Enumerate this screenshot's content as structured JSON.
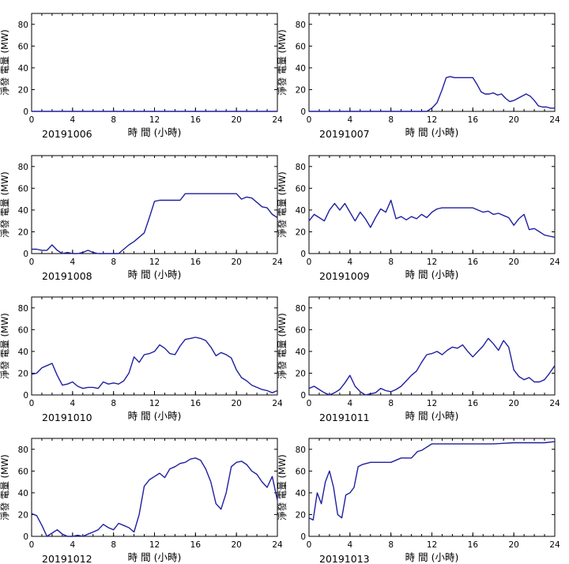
{
  "chart_data": [
    {
      "type": "line",
      "date_label": "20191006",
      "xlabel": "時 間 (小時)",
      "ylabel": "淨發 電量 (MW)",
      "xlim": [
        0,
        24
      ],
      "ylim": [
        0,
        90
      ],
      "xticks": [
        "0",
        "4",
        "8",
        "12",
        "16",
        "20",
        "24"
      ],
      "yticks": [
        "0",
        "20",
        "40",
        "60",
        "80"
      ],
      "line_color": "#1f1fa0",
      "x": [
        0,
        24
      ],
      "y": [
        0,
        0
      ]
    },
    {
      "type": "line",
      "date_label": "20191007",
      "xlabel": "時 間 (小時)",
      "ylabel": "淨發 電量 (MW)",
      "xlim": [
        0,
        24
      ],
      "ylim": [
        0,
        90
      ],
      "xticks": [
        "0",
        "4",
        "8",
        "12",
        "16",
        "20",
        "24"
      ],
      "yticks": [
        "0",
        "20",
        "40",
        "60",
        "80"
      ],
      "line_color": "#1f1fa0",
      "x": [
        0,
        11.5,
        12,
        12.5,
        13,
        13.4,
        13.8,
        14.2,
        14.6,
        15,
        15.5,
        16,
        16.4,
        16.8,
        17.2,
        17.6,
        18,
        18.4,
        18.8,
        19.2,
        19.6,
        20,
        20.4,
        20.8,
        21.2,
        21.6,
        22,
        22.4,
        22.8,
        23.2,
        23.6,
        24
      ],
      "y": [
        0,
        0,
        3,
        8,
        20,
        31,
        32,
        31,
        31,
        31,
        31,
        31,
        25,
        18,
        16,
        16,
        17,
        15,
        16,
        12,
        9,
        10,
        12,
        14,
        16,
        14,
        10,
        5,
        4,
        4,
        3,
        3
      ]
    },
    {
      "type": "line",
      "date_label": "20191008",
      "xlabel": "時 間 (小時)",
      "ylabel": "淨發 電量 (MW)",
      "xlim": [
        0,
        24
      ],
      "ylim": [
        0,
        90
      ],
      "xticks": [
        "0",
        "4",
        "8",
        "12",
        "16",
        "20",
        "24"
      ],
      "yticks": [
        "0",
        "20",
        "40",
        "60",
        "80"
      ],
      "line_color": "#1f1fa0",
      "x": [
        0,
        0.5,
        1,
        1.5,
        2,
        2.5,
        3,
        3.5,
        4,
        4.5,
        5,
        5.5,
        6,
        6.5,
        7,
        7.5,
        8,
        8.5,
        9,
        9.5,
        10,
        10.5,
        11,
        11.5,
        12,
        12.5,
        13,
        13.5,
        14,
        14.5,
        15,
        15.5,
        16,
        16.5,
        17,
        17.5,
        18,
        18.5,
        19,
        19.5,
        20,
        20.5,
        21,
        21.5,
        22,
        22.5,
        23,
        23.5,
        24
      ],
      "y": [
        4,
        4,
        3,
        3,
        8,
        3,
        0,
        1,
        0,
        0,
        1,
        3,
        1,
        0,
        0,
        0,
        0,
        0,
        4,
        8,
        11,
        15,
        19,
        33,
        48,
        49,
        49,
        49,
        49,
        49,
        55,
        55,
        55,
        55,
        55,
        55,
        55,
        55,
        55,
        55,
        55,
        50,
        52,
        51,
        47,
        43,
        42,
        36,
        33
      ]
    },
    {
      "type": "line",
      "date_label": "20191009",
      "xlabel": "時 間 (小時)",
      "ylabel": "淨發 電量 (MW)",
      "xlim": [
        0,
        24
      ],
      "ylim": [
        0,
        90
      ],
      "xticks": [
        "0",
        "4",
        "8",
        "12",
        "16",
        "20",
        "24"
      ],
      "yticks": [
        "0",
        "20",
        "40",
        "60",
        "80"
      ],
      "line_color": "#1f1fa0",
      "x": [
        0,
        0.5,
        1,
        1.5,
        2,
        2.5,
        3,
        3.5,
        4,
        4.5,
        5,
        5.5,
        6,
        6.5,
        7,
        7.5,
        8,
        8.5,
        9,
        9.5,
        10,
        10.5,
        11,
        11.5,
        12,
        12.5,
        13,
        13.5,
        14,
        14.5,
        15,
        15.5,
        16,
        16.5,
        17,
        17.5,
        18,
        18.5,
        19,
        19.5,
        20,
        20.5,
        21,
        21.5,
        22,
        22.5,
        23,
        23.5,
        24
      ],
      "y": [
        30,
        36,
        33,
        30,
        40,
        46,
        40,
        46,
        38,
        30,
        38,
        32,
        24,
        33,
        41,
        38,
        49,
        32,
        34,
        31,
        34,
        32,
        36,
        33,
        38,
        41,
        42,
        42,
        42,
        42,
        42,
        42,
        42,
        40,
        38,
        39,
        36,
        37,
        35,
        33,
        26,
        32,
        36,
        22,
        23,
        20,
        17,
        16,
        15
      ]
    },
    {
      "type": "line",
      "date_label": "20191010",
      "xlabel": "時 間 (小時)",
      "ylabel": "淨發 電量 (MW)",
      "xlim": [
        0,
        24
      ],
      "ylim": [
        0,
        90
      ],
      "xticks": [
        "0",
        "4",
        "8",
        "12",
        "16",
        "20",
        "24"
      ],
      "yticks": [
        "0",
        "20",
        "40",
        "60",
        "80"
      ],
      "line_color": "#1f1fa0",
      "x": [
        0,
        0.5,
        1,
        1.5,
        2,
        2.5,
        3,
        3.5,
        4,
        4.5,
        5,
        5.5,
        6,
        6.5,
        7,
        7.5,
        8,
        8.5,
        9,
        9.5,
        10,
        10.5,
        11,
        11.5,
        12,
        12.5,
        13,
        13.5,
        14,
        14.5,
        15,
        15.5,
        16,
        16.5,
        17,
        17.5,
        18,
        18.5,
        19,
        19.5,
        20,
        20.5,
        21,
        21.5,
        22,
        22.5,
        23,
        23.5,
        24
      ],
      "y": [
        19,
        20,
        25,
        27,
        29,
        18,
        9,
        10,
        12,
        8,
        6,
        7,
        7,
        6,
        12,
        10,
        11,
        10,
        13,
        20,
        35,
        30,
        37,
        38,
        40,
        46,
        43,
        38,
        37,
        45,
        51,
        52,
        53,
        52,
        50,
        44,
        36,
        39,
        37,
        34,
        23,
        16,
        13,
        9,
        7,
        5,
        4,
        2,
        4
      ]
    },
    {
      "type": "line",
      "date_label": "20191011",
      "xlabel": "時 間 (小時)",
      "ylabel": "淨發 電量 (MW)",
      "xlim": [
        0,
        24
      ],
      "ylim": [
        0,
        90
      ],
      "xticks": [
        "0",
        "4",
        "8",
        "12",
        "16",
        "20",
        "24"
      ],
      "yticks": [
        "0",
        "20",
        "40",
        "60",
        "80"
      ],
      "line_color": "#1f1fa0",
      "x": [
        0,
        0.5,
        1,
        1.5,
        2,
        2.5,
        3,
        3.5,
        4,
        4.5,
        5,
        5.5,
        6,
        6.5,
        7,
        7.5,
        8,
        8.5,
        9,
        9.5,
        10,
        10.5,
        11,
        11.5,
        12,
        12.5,
        13,
        13.5,
        14,
        14.5,
        15,
        15.5,
        16,
        16.5,
        17,
        17.5,
        18,
        18.5,
        19,
        19.5,
        20,
        20.5,
        21,
        21.5,
        22,
        22.5,
        23,
        23.5,
        24
      ],
      "y": [
        6,
        8,
        5,
        2,
        0,
        2,
        5,
        11,
        18,
        8,
        3,
        0,
        1,
        2,
        6,
        4,
        3,
        5,
        8,
        13,
        18,
        22,
        30,
        37,
        38,
        40,
        37,
        41,
        44,
        43,
        46,
        40,
        35,
        40,
        45,
        52,
        47,
        41,
        50,
        44,
        23,
        17,
        14,
        16,
        12,
        12,
        14,
        20,
        27
      ]
    },
    {
      "type": "line",
      "date_label": "20191012",
      "xlabel": "時 間 (小時)",
      "ylabel": "淨發 電量 (MW)",
      "xlim": [
        0,
        24
      ],
      "ylim": [
        0,
        90
      ],
      "xticks": [
        "0",
        "4",
        "8",
        "12",
        "16",
        "20",
        "24"
      ],
      "yticks": [
        "0",
        "20",
        "40",
        "60",
        "80"
      ],
      "line_color": "#1f1fa0",
      "x": [
        0,
        0.5,
        1,
        1.5,
        2,
        2.5,
        3,
        3.5,
        4,
        4.5,
        5,
        5.5,
        6,
        6.5,
        7,
        7.5,
        8,
        8.5,
        9,
        9.5,
        10,
        10.5,
        11,
        11.5,
        12,
        12.5,
        13,
        13.5,
        14,
        14.5,
        15,
        15.5,
        16,
        16.5,
        17,
        17.5,
        18,
        18.5,
        19,
        19.5,
        20,
        20.5,
        21,
        21.5,
        22,
        22.5,
        23,
        23.5,
        24
      ],
      "y": [
        21,
        19,
        10,
        0,
        3,
        6,
        2,
        0,
        0,
        1,
        0,
        2,
        4,
        6,
        11,
        8,
        6,
        12,
        10,
        8,
        4,
        20,
        46,
        52,
        55,
        58,
        54,
        62,
        64,
        67,
        68,
        71,
        72,
        70,
        62,
        50,
        30,
        25,
        40,
        64,
        68,
        69,
        66,
        60,
        57,
        50,
        45,
        55,
        33
      ]
    },
    {
      "type": "line",
      "date_label": "20191013",
      "xlabel": "時 間 (小時)",
      "ylabel": "淨發 電量 (MW)",
      "xlim": [
        0,
        24
      ],
      "ylim": [
        0,
        90
      ],
      "xticks": [
        "0",
        "4",
        "8",
        "12",
        "16",
        "20",
        "24"
      ],
      "yticks": [
        "0",
        "20",
        "40",
        "60",
        "80"
      ],
      "line_color": "#1f1fa0",
      "x": [
        0,
        0.4,
        0.8,
        1.2,
        1.6,
        2,
        2.4,
        2.8,
        3.2,
        3.6,
        4,
        4.4,
        4.8,
        5.2,
        5.6,
        6,
        7,
        8,
        9,
        10,
        10.6,
        11,
        12,
        14,
        16,
        18,
        20,
        22,
        23,
        24
      ],
      "y": [
        17,
        15,
        40,
        30,
        50,
        60,
        45,
        20,
        17,
        38,
        40,
        45,
        64,
        66,
        67,
        68,
        68,
        68,
        72,
        72,
        78,
        79,
        85,
        85,
        85,
        85,
        86,
        86,
        86,
        87
      ]
    }
  ]
}
